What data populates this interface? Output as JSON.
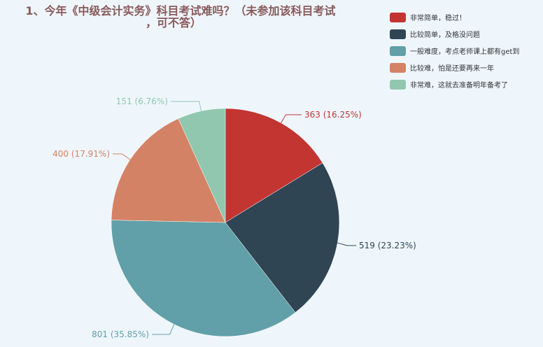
{
  "chart_data": {
    "type": "pie",
    "title_line1": "1、今年《中级会计实务》科目考试难吗？（未参加该科目考试",
    "title_line2": "，可不答）",
    "legend_position": "top-right",
    "slices": [
      {
        "name": "非常简单，稳过！",
        "value": 363,
        "label": "363 (16.25%)",
        "color": "#c23531"
      },
      {
        "name": "比较简单，及格没问题",
        "value": 519,
        "label": "519 (23.23%)",
        "color": "#2f4554"
      },
      {
        "name": "一般难度，考点老师课上都有get到",
        "value": 801,
        "label": "801 (35.85%)",
        "color": "#61a0a8"
      },
      {
        "name": "比较难，怕是还要再来一年",
        "value": 400,
        "label": "400 (17.91%)",
        "color": "#d48265"
      },
      {
        "name": "非常难，这就去准备明年备考了",
        "value": 151,
        "label": "151 (6.76%)",
        "color": "#91c7ae"
      }
    ]
  }
}
